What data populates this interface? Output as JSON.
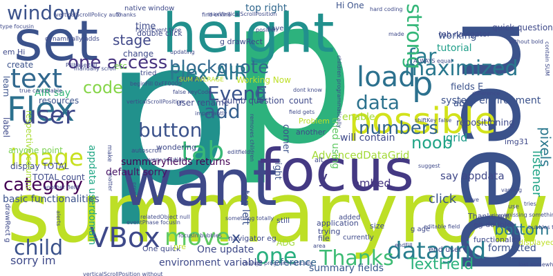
{
  "cloud": {
    "background": "#ffffff",
    "words": [
      {
        "text": "p",
        "color": "#21918c"
      },
      {
        "text": "p",
        "color": "#2db27d"
      },
      {
        "text": "summaryrow",
        "color": "#bddf26"
      },
      {
        "text": "height",
        "color": "#21908d"
      },
      {
        "text": "need",
        "color": "#3b528b"
      },
      {
        "text": "want",
        "color": "#3e4989"
      },
      {
        "text": "focus",
        "color": "#443983"
      },
      {
        "text": "set",
        "color": "#3b528b"
      },
      {
        "text": "possible",
        "color": "#d2e21b"
      },
      {
        "text": "Flex",
        "color": "#2c718e"
      },
      {
        "text": "text",
        "color": "#31688e"
      },
      {
        "text": "user",
        "color": "#3e4989"
      },
      {
        "text": "image",
        "color": "#c8e020"
      },
      {
        "text": "tab",
        "color": "#38b977"
      },
      {
        "text": "load",
        "color": "#2c718e"
      },
      {
        "text": "datagrid",
        "color": "#287d8e"
      },
      {
        "text": "VBox",
        "color": "#3e4989"
      },
      {
        "text": "Thanks",
        "color": "#3dbc74"
      },
      {
        "text": "move",
        "color": "#5ec962"
      },
      {
        "text": "maximized",
        "color": "#2a788e"
      },
      {
        "text": "blockquote",
        "color": "#31688e"
      },
      {
        "text": "window",
        "color": "#3b528b"
      },
      {
        "text": "category",
        "color": "#440154"
      },
      {
        "text": "child",
        "color": "#3b528b"
      },
      {
        "text": "data",
        "color": "#2c728e"
      },
      {
        "text": "button",
        "color": "#3b528b"
      },
      {
        "text": "numbers",
        "color": "#32648e"
      },
      {
        "text": "add",
        "color": "#355f8d"
      },
      {
        "text": "EvenE",
        "color": "#3a548c"
      },
      {
        "text": "Flex AIR",
        "color": "#2a788e"
      },
      {
        "text": "one access",
        "color": "#46327e"
      },
      {
        "text": "code",
        "color": "#86d549"
      },
      {
        "text": "stage",
        "color": "#3f4788"
      },
      {
        "text": "far",
        "color": "#287c8e"
      },
      {
        "text": "strong",
        "color": "#35b779"
      },
      {
        "text": "bottom",
        "color": "#2a788e"
      },
      {
        "text": "one",
        "color": "#29af7f"
      },
      {
        "text": "TextField",
        "color": "#2db27d"
      },
      {
        "text": "x",
        "color": "#3b528b"
      },
      {
        "text": "noob",
        "color": "#20a486"
      },
      {
        "text": "pixels",
        "color": "#2a788e"
      },
      {
        "text": "g",
        "color": "#31688e"
      },
      {
        "text": "p",
        "color": "#2c718e"
      },
      {
        "text": "embed",
        "color": "#453581"
      },
      {
        "text": "y",
        "color": "#443a83"
      },
      {
        "text": "listener",
        "color": "#20a386"
      },
      {
        "text": "summaryfields returns",
        "color": "#440154"
      },
      {
        "text": "default sorry",
        "color": "#471365"
      },
      {
        "text": "AdvancedDataGrid",
        "color": "#a2da37"
      },
      {
        "text": "One update",
        "color": "#3e4989"
      },
      {
        "text": "environment variable",
        "color": "#3e4989"
      },
      {
        "text": "reference",
        "color": "#31688e"
      },
      {
        "text": "summary fields",
        "color": "#38588c"
      },
      {
        "text": "formatted",
        "color": "#3b528b"
      },
      {
        "text": "sorry im",
        "color": "#3e4989"
      },
      {
        "text": "appdata userdomain",
        "color": "#22a785"
      },
      {
        "text": "top right",
        "color": "#31688e"
      },
      {
        "text": "top left",
        "color": "#3b528b"
      },
      {
        "text": "system environment",
        "color": "#3b528b"
      },
      {
        "text": "grid",
        "color": "#1e9b8a"
      },
      {
        "text": "say appdata",
        "color": "#3f4788"
      },
      {
        "text": "click",
        "color": "#3b528b"
      },
      {
        "text": "tutorial",
        "color": "#1f9e89"
      },
      {
        "text": "working",
        "color": "#3b528b"
      },
      {
        "text": "time",
        "color": "#3e4a89"
      },
      {
        "text": "change",
        "color": "#3e4989"
      },
      {
        "text": "create",
        "color": "#3b528b"
      },
      {
        "text": "etc",
        "color": "#7ad151"
      },
      {
        "text": "mouse",
        "color": "#3b528b"
      },
      {
        "text": "Working Now",
        "color": "#bddf26"
      },
      {
        "text": "dumb question",
        "color": "#3e4989"
      },
      {
        "text": "able",
        "color": "#3b528b"
      },
      {
        "text": "fields E",
        "color": "#3b528b"
      },
      {
        "text": "tried using",
        "color": "#5ec962"
      },
      {
        "text": "enable",
        "color": "#a5db36"
      },
      {
        "text": "will contain",
        "color": "#3e4989"
      },
      {
        "text": "count",
        "color": "#3e4989"
      },
      {
        "text": "user rename",
        "color": "#3e4989"
      },
      {
        "text": "basic functionalities",
        "color": "#3b528b"
      },
      {
        "text": "TOTAL count",
        "color": "#3e4989"
      },
      {
        "text": "display TOTAL",
        "color": "#3e4989"
      },
      {
        "text": "anyone point",
        "color": "#7ad151"
      },
      {
        "text": "AIR say",
        "color": "#35b779"
      },
      {
        "text": "resources",
        "color": "#3b528b"
      },
      {
        "text": "learn",
        "color": "#3b528b"
      },
      {
        "text": "label",
        "color": "#3e4989"
      },
      {
        "text": "respective columns",
        "color": "#aadc32"
      },
      {
        "text": "drawRect g",
        "color": "#3e4989"
      },
      {
        "text": "repositioning",
        "color": "#3e4989"
      },
      {
        "text": "g drawRect",
        "color": "#3e4989"
      },
      {
        "text": "quick question",
        "color": "#3e4989"
      },
      {
        "text": "tab navigator",
        "color": "#3e4989"
      },
      {
        "text": "Hi One",
        "color": "#3b528b"
      },
      {
        "text": "double click",
        "color": "#3e4989"
      },
      {
        "text": "Thanks em",
        "color": "#3e4989"
      },
      {
        "text": "eg double",
        "color": "#3e4989"
      },
      {
        "text": "img31",
        "color": "#3e4989"
      },
      {
        "text": "functionality",
        "color": "#3e4989"
      },
      {
        "text": "navigator eg",
        "color": "#3e4989"
      },
      {
        "text": "ADG",
        "color": "#a0da39"
      },
      {
        "text": "application",
        "color": "#3e4989"
      },
      {
        "text": "still",
        "color": "#3e4989"
      },
      {
        "text": "trying",
        "color": "#3e4989"
      },
      {
        "text": "file",
        "color": "#3e4989"
      },
      {
        "text": "end user",
        "color": "#3e4989"
      },
      {
        "text": "displayed e",
        "color": "#bddf26"
      },
      {
        "text": "One quick",
        "color": "#3e4989"
      },
      {
        "text": "size",
        "color": "#3e4989"
      },
      {
        "text": "corner",
        "color": "#3b528b"
      },
      {
        "text": "right",
        "color": "#3b528b"
      },
      {
        "text": "Problem",
        "color": "#bddf26"
      },
      {
        "text": "wondering",
        "color": "#3e4989"
      },
      {
        "text": "autoscroll",
        "color": "#3e4989"
      },
      {
        "text": "make",
        "color": "#3e4989"
      },
      {
        "text": "SUM AVERAGE",
        "color": "#bddf26"
      },
      {
        "text": "em Hi",
        "color": "#3e4989"
      },
      {
        "text": "save",
        "color": "#3e4989"
      },
      {
        "text": "alt",
        "color": "#3e4989"
      },
      {
        "text": "pre",
        "color": "#bddf26"
      },
      {
        "text": "another",
        "color": "#3e4989"
      },
      {
        "text": "added",
        "color": "#3e4989"
      },
      {
        "text": "currently",
        "color": "#3e4989"
      },
      {
        "text": "g age",
        "color": "#3e4989"
      },
      {
        "text": "tried",
        "color": "#3e4989"
      },
      {
        "text": "native window",
        "color": "#3e4989"
      },
      {
        "text": "dynamically adds",
        "color": "#3e4989"
      },
      {
        "text": "Thanks",
        "color": "#3e4989"
      },
      {
        "text": "verticalScrollPolicy auto",
        "color": "#3e4989"
      },
      {
        "text": "maxVerticalScrollPosition",
        "color": "#3e4989"
      },
      {
        "text": "find online",
        "color": "#3e4989"
      },
      {
        "text": "hard coding",
        "color": "#3e4989"
      },
      {
        "text": "type focusin",
        "color": "#3e4989"
      },
      {
        "text": "FocusEvent type",
        "color": "#3e4989"
      },
      {
        "text": "ALWAYS equal",
        "color": "#3e4989"
      },
      {
        "text": "contain SUM",
        "color": "#3e4989"
      },
      {
        "text": "without bold",
        "color": "#3e4989"
      },
      {
        "text": "Pillbase tell",
        "color": "#3e4989"
      },
      {
        "text": "manually scroll",
        "color": "#3e4989"
      },
      {
        "text": "true cancelable",
        "color": "#3e4989"
      },
      {
        "text": "false keyCode",
        "color": "#3e4989"
      },
      {
        "text": "shiftKey false",
        "color": "#3e4989"
      },
      {
        "text": "difference",
        "color": "#3e4989"
      },
      {
        "text": "every solution",
        "color": "#3e4989"
      },
      {
        "text": "editfield",
        "color": "#3e4989"
      },
      {
        "text": "removes children",
        "color": "#3e4989"
      },
      {
        "text": "field gets",
        "color": "#3e4989"
      },
      {
        "text": "dont know",
        "color": "#3e4989"
      },
      {
        "text": "children programmatically",
        "color": "#3e4989"
      },
      {
        "text": "verticalScrollPosition",
        "color": "#3e4989"
      },
      {
        "text": "beginFill 0xFF0000",
        "color": "#3e4989"
      },
      {
        "text": "something totally",
        "color": "#3e4989"
      },
      {
        "text": "endFill",
        "color": "#3e4989"
      },
      {
        "text": "editable field",
        "color": "#3e4989"
      },
      {
        "text": "missing something",
        "color": "#3e4989"
      },
      {
        "text": "varying",
        "color": "#3e4989"
      },
      {
        "text": "give",
        "color": "#3e4989"
      },
      {
        "text": "tries",
        "color": "#3e4989"
      },
      {
        "text": "use",
        "color": "#3e4989"
      },
      {
        "text": "bubbles true",
        "color": "#3e4989"
      },
      {
        "text": "lost somewhere",
        "color": "#3e4989"
      },
      {
        "text": "change programmatically",
        "color": "#3e4989"
      },
      {
        "text": "validateNow",
        "color": "#3e4989"
      },
      {
        "text": "another field",
        "color": "#3e4989"
      },
      {
        "text": "verticalScrollPosition without",
        "color": "#3e4989"
      },
      {
        "text": "focusIn bubbles",
        "color": "#3e4989"
      },
      {
        "text": "eventPhase focusIn",
        "color": "#3e4989"
      },
      {
        "text": "relatedObject null",
        "color": "#3e4989"
      },
      {
        "text": "alerts",
        "color": "#3e4989"
      },
      {
        "text": "area",
        "color": "#3e4989"
      },
      {
        "text": "importantly",
        "color": "#3e4989"
      },
      {
        "text": "made",
        "color": "#3e4989"
      },
      {
        "text": "position",
        "color": "#3e4989"
      },
      {
        "text": "matter",
        "color": "#3e4989"
      },
      {
        "text": "press",
        "color": "#3e4989"
      },
      {
        "text": "simply",
        "color": "#3e4989"
      },
      {
        "text": "suggest",
        "color": "#3e4989"
      },
      {
        "text": "updating",
        "color": "#3e4989"
      }
    ]
  }
}
